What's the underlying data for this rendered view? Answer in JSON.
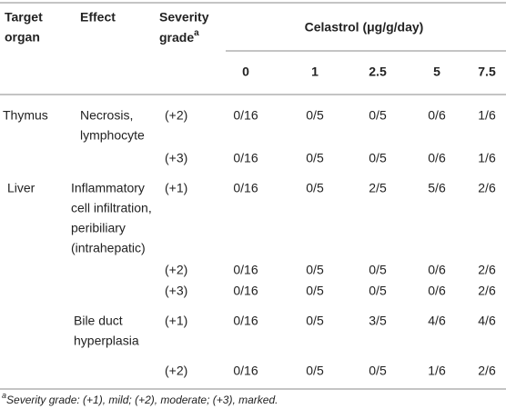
{
  "table": {
    "header": {
      "target_organ": [
        "Target",
        "organ"
      ],
      "effect": "Effect",
      "severity_grade": [
        "Severity",
        "grade"
      ],
      "severity_note": "a",
      "group": "Celastrol (μg/g/day)",
      "doses": [
        "0",
        "1",
        "2.5",
        "5",
        "7.5"
      ]
    },
    "rows": [
      {
        "organ": "Thymus",
        "effect": [
          "Necrosis,",
          "lymphocyte"
        ],
        "grade": "(+2)",
        "values": [
          "0/16",
          "0/5",
          "0/5",
          "0/6",
          "1/6"
        ]
      },
      {
        "grade": "(+3)",
        "values": [
          "0/16",
          "0/5",
          "0/5",
          "0/6",
          "1/6"
        ]
      },
      {
        "organ": "Liver",
        "effect": [
          "Inflammatory",
          "cell infiltration,",
          "peribiliary",
          "(intrahepatic)"
        ],
        "grade": "(+1)",
        "values": [
          "0/16",
          "0/5",
          "2/5",
          "5/6",
          "2/6"
        ]
      },
      {
        "grade": "(+2)",
        "values": [
          "0/16",
          "0/5",
          "0/5",
          "0/6",
          "2/6"
        ]
      },
      {
        "grade": "(+3)",
        "values": [
          "0/16",
          "0/5",
          "0/5",
          "0/6",
          "2/6"
        ]
      },
      {
        "effect": [
          "Bile duct",
          "hyperplasia"
        ],
        "grade": "(+1)",
        "values": [
          "0/16",
          "0/5",
          "3/5",
          "4/6",
          "4/6"
        ]
      },
      {
        "grade": "(+2)",
        "values": [
          "0/16",
          "0/5",
          "0/5",
          "1/6",
          "2/6"
        ]
      }
    ],
    "footnote": {
      "mark": "a",
      "text": "Severity grade: (+1), mild; (+2), moderate; (+3), marked."
    }
  }
}
